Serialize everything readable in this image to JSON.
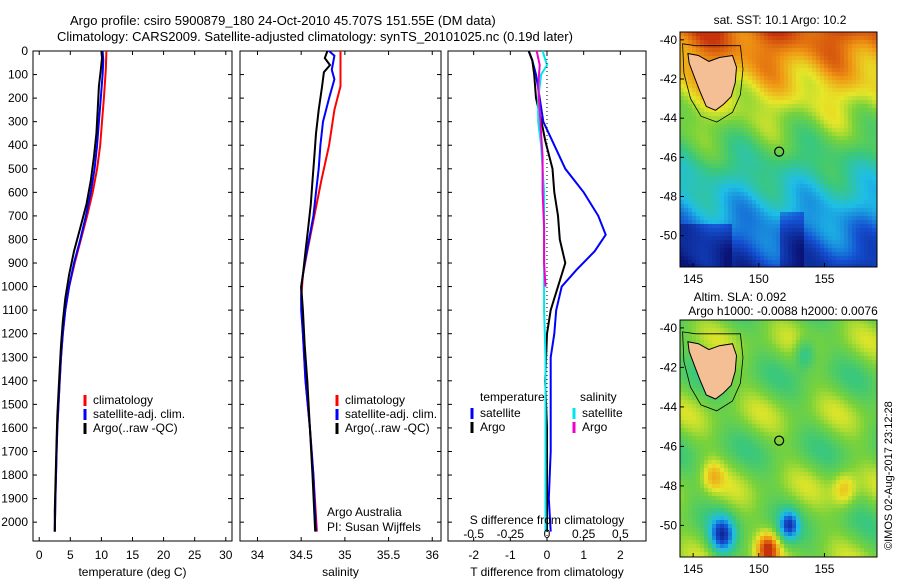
{
  "header": {
    "line1": "Argo profile: csiro 5900879_180 24-Oct-2010 45.707S 151.55E (DM data)",
    "line2": "Climatology: CARS2009. Satellite-adjusted climatology: synTS_20101025.nc (0.19d later)"
  },
  "watermark": "©IMOS 02-Aug-2017 23:12:28",
  "colors": {
    "climatology": "#ff0000",
    "satellite": "#0000ff",
    "argo": "#000000",
    "sal_sat": "#00e5ee",
    "sal_argo": "#ee00cc"
  },
  "chart_data": [
    {
      "type": "line",
      "xlabel": "temperature (deg C)",
      "ylabel": "",
      "xlim": [
        -1,
        31
      ],
      "ylim": [
        2080,
        0
      ],
      "xticks": [
        "0",
        "5",
        "10",
        "15",
        "20",
        "25",
        "30"
      ],
      "yticks": [
        "0",
        "100",
        "200",
        "300",
        "400",
        "500",
        "600",
        "700",
        "800",
        "900",
        "1000",
        "1100",
        "1200",
        "1300",
        "1400",
        "1500",
        "1600",
        "1700",
        "1800",
        "1900",
        "2000"
      ],
      "legend": [
        "climatology",
        "satellite-adj. clim.",
        "Argo(..raw -QC)"
      ],
      "series": [
        {
          "name": "climatology",
          "points": [
            [
              10.8,
              0
            ],
            [
              10.7,
              80
            ],
            [
              10.4,
              200
            ],
            [
              10.1,
              300
            ],
            [
              9.8,
              400
            ],
            [
              9.3,
              500
            ],
            [
              8.6,
              600
            ],
            [
              7.7,
              700
            ],
            [
              6.7,
              800
            ],
            [
              5.7,
              900
            ],
            [
              4.8,
              1000
            ],
            [
              4.2,
              1100
            ],
            [
              3.8,
              1200
            ],
            [
              3.5,
              1300
            ],
            [
              3.3,
              1400
            ],
            [
              3.1,
              1500
            ],
            [
              2.9,
              1600
            ],
            [
              2.8,
              1700
            ],
            [
              2.7,
              1800
            ],
            [
              2.6,
              1900
            ],
            [
              2.5,
              2040
            ]
          ]
        },
        {
          "name": "satellite",
          "points": [
            [
              10.2,
              0
            ],
            [
              10.3,
              40
            ],
            [
              10.2,
              100
            ],
            [
              9.9,
              200
            ],
            [
              9.6,
              300
            ],
            [
              9.3,
              400
            ],
            [
              8.9,
              500
            ],
            [
              8.3,
              600
            ],
            [
              7.5,
              700
            ],
            [
              6.6,
              800
            ],
            [
              5.6,
              900
            ],
            [
              4.8,
              1000
            ],
            [
              4.2,
              1100
            ],
            [
              3.8,
              1200
            ],
            [
              3.5,
              1300
            ],
            [
              3.3,
              1400
            ],
            [
              3.1,
              1500
            ],
            [
              2.9,
              1600
            ],
            [
              2.8,
              1700
            ],
            [
              2.7,
              1800
            ],
            [
              2.6,
              1900
            ],
            [
              2.5,
              2040
            ]
          ]
        },
        {
          "name": "argo",
          "points": [
            [
              10.0,
              0
            ],
            [
              10.1,
              30
            ],
            [
              9.9,
              80
            ],
            [
              9.6,
              150
            ],
            [
              9.4,
              250
            ],
            [
              9.2,
              350
            ],
            [
              8.8,
              450
            ],
            [
              8.3,
              550
            ],
            [
              7.6,
              650
            ],
            [
              6.6,
              750
            ],
            [
              5.6,
              850
            ],
            [
              4.8,
              950
            ],
            [
              4.2,
              1050
            ],
            [
              3.8,
              1150
            ],
            [
              3.5,
              1250
            ],
            [
              3.3,
              1350
            ],
            [
              3.1,
              1450
            ],
            [
              2.9,
              1550
            ],
            [
              2.8,
              1650
            ],
            [
              2.7,
              1750
            ],
            [
              2.6,
              1850
            ],
            [
              2.5,
              1950
            ],
            [
              2.5,
              2040
            ]
          ]
        }
      ]
    },
    {
      "type": "line",
      "xlabel": "salinity",
      "xlim": [
        33.8,
        36.1
      ],
      "ylim": [
        2080,
        0
      ],
      "xticks": [
        "34",
        "34.5",
        "35",
        "35.5",
        "36"
      ],
      "legend": [
        "climatology",
        "satellite-adj. clim.",
        "Argo(..raw -QC)"
      ],
      "annotations": [
        "Argo Australia",
        "PI: Susan Wijffels"
      ],
      "series": [
        {
          "name": "climatology",
          "points": [
            [
              34.95,
              0
            ],
            [
              34.95,
              150
            ],
            [
              34.88,
              250
            ],
            [
              34.82,
              400
            ],
            [
              34.73,
              550
            ],
            [
              34.65,
              700
            ],
            [
              34.57,
              850
            ],
            [
              34.52,
              950
            ],
            [
              34.5,
              1050
            ],
            [
              34.52,
              1200
            ],
            [
              34.55,
              1400
            ],
            [
              34.6,
              1600
            ],
            [
              34.64,
              1800
            ],
            [
              34.68,
              2040
            ]
          ]
        },
        {
          "name": "satellite",
          "points": [
            [
              34.82,
              0
            ],
            [
              34.88,
              20
            ],
            [
              34.85,
              80
            ],
            [
              34.88,
              120
            ],
            [
              34.82,
              200
            ],
            [
              34.75,
              300
            ],
            [
              34.72,
              400
            ],
            [
              34.7,
              500
            ],
            [
              34.67,
              600
            ],
            [
              34.64,
              700
            ],
            [
              34.59,
              800
            ],
            [
              34.54,
              900
            ],
            [
              34.5,
              1000
            ],
            [
              34.5,
              1100
            ],
            [
              34.52,
              1200
            ],
            [
              34.55,
              1400
            ],
            [
              34.6,
              1600
            ],
            [
              34.64,
              1800
            ],
            [
              34.67,
              2040
            ]
          ]
        },
        {
          "name": "argo",
          "points": [
            [
              34.8,
              0
            ],
            [
              34.77,
              30
            ],
            [
              34.83,
              60
            ],
            [
              34.76,
              90
            ],
            [
              34.74,
              150
            ],
            [
              34.7,
              250
            ],
            [
              34.67,
              350
            ],
            [
              34.65,
              450
            ],
            [
              34.63,
              550
            ],
            [
              34.61,
              650
            ],
            [
              34.58,
              750
            ],
            [
              34.55,
              850
            ],
            [
              34.52,
              950
            ],
            [
              34.5,
              1000
            ],
            [
              34.52,
              1100
            ],
            [
              34.54,
              1250
            ],
            [
              34.57,
              1400
            ],
            [
              34.6,
              1600
            ],
            [
              34.63,
              1800
            ],
            [
              34.66,
              2040
            ]
          ]
        }
      ]
    },
    {
      "type": "line",
      "xlabel": "T difference from climatology",
      "top_label": "S difference from climatology",
      "xlim": [
        -2.7,
        2.7
      ],
      "ylim": [
        2080,
        0
      ],
      "xticks": [
        "-2",
        "-1",
        "0",
        "1",
        "2"
      ],
      "top_ticks": [
        "-0.5",
        "-0.25",
        "0",
        "0.25",
        "0.5"
      ],
      "legend_temperature_title": "temperature",
      "legend_salinity_title": "salinity",
      "legend_temperature": [
        "satellite",
        "Argo"
      ],
      "legend_salinity": [
        "satellite",
        "Argo"
      ],
      "series": [
        {
          "name": "T satellite",
          "points": [
            [
              -0.5,
              0
            ],
            [
              -0.4,
              40
            ],
            [
              -0.3,
              100
            ],
            [
              -0.2,
              200
            ],
            [
              -0.1,
              300
            ],
            [
              0.2,
              400
            ],
            [
              0.5,
              500
            ],
            [
              1.0,
              600
            ],
            [
              1.4,
              700
            ],
            [
              1.6,
              780
            ],
            [
              1.3,
              850
            ],
            [
              0.8,
              930
            ],
            [
              0.4,
              1000
            ],
            [
              0.25,
              1100
            ],
            [
              0.2,
              1200
            ],
            [
              0.1,
              1300
            ],
            [
              0.1,
              1500
            ],
            [
              0.1,
              1700
            ],
            [
              0.05,
              1900
            ],
            [
              0.1,
              2040
            ]
          ]
        },
        {
          "name": "T argo",
          "points": [
            [
              -0.5,
              0
            ],
            [
              -0.4,
              40
            ],
            [
              -0.35,
              100
            ],
            [
              -0.3,
              200
            ],
            [
              -0.15,
              300
            ],
            [
              -0.05,
              380
            ],
            [
              0.15,
              500
            ],
            [
              0.2,
              600
            ],
            [
              0.3,
              700
            ],
            [
              0.35,
              800
            ],
            [
              0.5,
              900
            ],
            [
              0.3,
              1000
            ],
            [
              0.1,
              1100
            ],
            [
              0.0,
              1200
            ],
            [
              -0.05,
              1400
            ],
            [
              0.0,
              1600
            ],
            [
              0.0,
              1800
            ],
            [
              0.0,
              2040
            ]
          ]
        },
        {
          "name": "S satellite",
          "points": [
            [
              -0.03,
              0
            ],
            [
              0.0,
              60
            ],
            [
              -0.04,
              100
            ],
            [
              -0.06,
              200
            ],
            [
              -0.06,
              300
            ],
            [
              -0.04,
              400
            ],
            [
              -0.03,
              500
            ],
            [
              -0.02,
              600
            ],
            [
              -0.02,
              700
            ],
            [
              -0.02,
              800
            ],
            [
              -0.02,
              900
            ],
            [
              -0.02,
              1000
            ],
            [
              -0.02,
              1100
            ],
            [
              -0.01,
              1300
            ],
            [
              -0.01,
              1500
            ],
            [
              -0.01,
              1700
            ],
            [
              -0.01,
              1900
            ],
            [
              -0.01,
              2040
            ]
          ]
        },
        {
          "name": "S argo",
          "points": [
            [
              -0.07,
              0
            ],
            [
              -0.05,
              60
            ],
            [
              -0.06,
              150
            ],
            [
              -0.05,
              250
            ],
            [
              -0.04,
              350
            ],
            [
              -0.03,
              450
            ],
            [
              -0.03,
              600
            ],
            [
              -0.02,
              750
            ],
            [
              -0.02,
              900
            ],
            [
              -0.01,
              1000
            ]
          ]
        }
      ]
    },
    {
      "type": "heatmap",
      "title": "sat. SST: 10.1  Argo: 10.2",
      "xlim": [
        144,
        159
      ],
      "ylim": [
        -51.6,
        -39.6
      ],
      "xticks": [
        "145",
        "150",
        "155"
      ],
      "yticks": [
        "-40",
        "-42",
        "-44",
        "-46",
        "-48",
        "-50"
      ],
      "marker": [
        151.55,
        -45.707
      ]
    },
    {
      "type": "heatmap",
      "title_line1": "Altim. SLA: 0.092",
      "title_line2": "Argo h1000: -0.0088 h2000: 0.0076",
      "xlim": [
        144,
        159
      ],
      "ylim": [
        -51.6,
        -39.6
      ],
      "xticks": [
        "145",
        "150",
        "155"
      ],
      "yticks": [
        "-40",
        "-42",
        "-44",
        "-46",
        "-48",
        "-50"
      ],
      "marker": [
        151.55,
        -45.707
      ]
    }
  ]
}
